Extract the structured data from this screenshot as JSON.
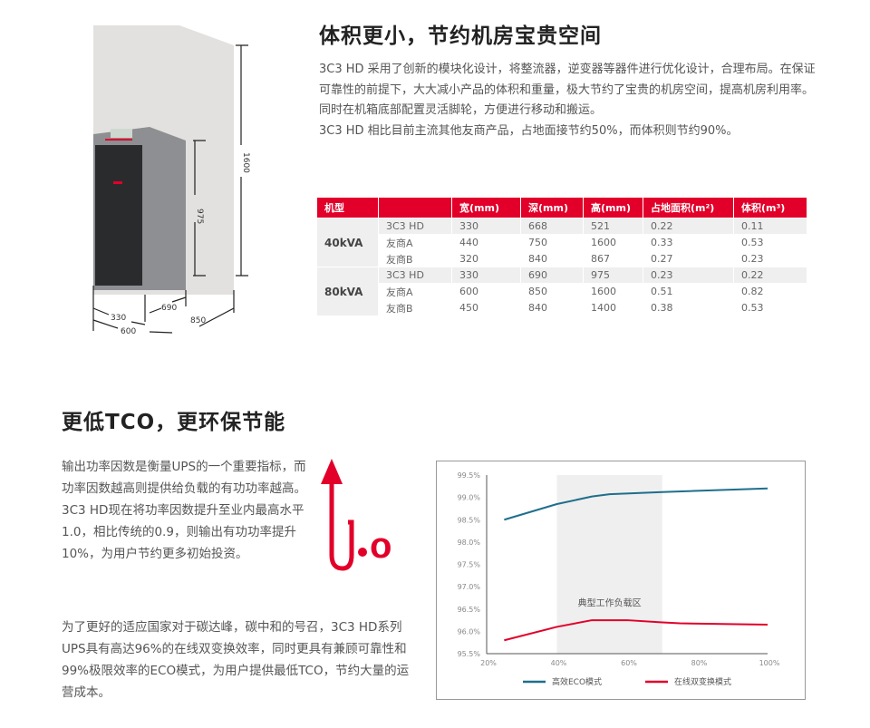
{
  "section1": {
    "title": "体积更小，节约机房宝贵空间",
    "paragraphs": [
      "3C3 HD 采用了创新的模块化设计，将整流器，逆变器等器件进行优化设计，合理布局。在保证可靠性的前提下，大大减小产品的体积和重量，极大节约了宝贵的机房空间，提高机房利用率。同时在机箱底部配置灵活脚轮，方便进行移动和搬运。",
      "3C3 HD 相比目前主流其他友商产品，占地面接节约50%，而体积则节约90%。"
    ],
    "dimensions": {
      "h_big": "1600",
      "h_small": "975",
      "w_small": "330",
      "d_small": "690",
      "w_big": "600",
      "d_big": "850"
    },
    "table": {
      "headers": [
        "机型",
        "",
        "宽(mm)",
        "深(mm)",
        "高(mm)",
        "占地面积(m²)",
        "体积(m³)"
      ],
      "groups": [
        {
          "model": "40kVA",
          "rows": [
            [
              "3C3 HD",
              "330",
              "668",
              "521",
              "0.22",
              "0.11"
            ],
            [
              "友商A",
              "440",
              "750",
              "1600",
              "0.33",
              "0.53"
            ],
            [
              "友商B",
              "320",
              "840",
              "867",
              "0.27",
              "0.23"
            ]
          ]
        },
        {
          "model": "80kVA",
          "rows": [
            [
              "3C3 HD",
              "330",
              "690",
              "975",
              "0.23",
              "0.22"
            ],
            [
              "友商A",
              "600",
              "850",
              "1600",
              "0.51",
              "0.82"
            ],
            [
              "友商B",
              "450",
              "840",
              "1400",
              "0.38",
              "0.53"
            ]
          ]
        }
      ]
    }
  },
  "section2": {
    "title": "更低TCO，更环保节能",
    "paragraph1": "输出功率因数是衡量UPS的一个重要指标，而功率因数越高则提供给负载的有功功率越高。3C3 HD现在将功率因数提升至业内最高水平1.0，相比传统的0.9，则输出有功功率提升10%，为用户节约更多初始投资。",
    "paragraph2": "为了更好的适应国家对于碳达峰，碳中和的号召，3C3 HD系列UPS具有高达96%的在线双变换效率，同时更具有兼顾可靠性和99%极限效率的ECO模式，为用户提供最低TCO，节约大量的运营成本。",
    "graphic_text": "1.0"
  },
  "colors": {
    "accent": "#e2002a",
    "eco": "#1f6e8c",
    "online": "#e2002a"
  },
  "chart_data": {
    "type": "line",
    "title": "",
    "xlabel": "",
    "ylabel": "",
    "xlim": [
      20,
      100
    ],
    "ylim": [
      95.5,
      99.5
    ],
    "x_ticks": [
      "20%",
      "40%",
      "60%",
      "80%",
      "100%"
    ],
    "y_ticks": [
      "95.5%",
      "96.0%",
      "96.5%",
      "97.0%",
      "97.5%",
      "98.0%",
      "98.5%",
      "99.0%",
      "99.5%"
    ],
    "shaded_region": {
      "x": [
        40,
        70
      ],
      "label": "典型工作负载区"
    },
    "series": [
      {
        "name": "高效ECO模式",
        "color": "#1f6e8c",
        "x": [
          25,
          40,
          50,
          55,
          70,
          100
        ],
        "y": [
          98.5,
          98.85,
          99.02,
          99.07,
          99.12,
          99.2
        ]
      },
      {
        "name": "在线双变换模式",
        "color": "#e2002a",
        "x": [
          25,
          40,
          50,
          60,
          70,
          75,
          100
        ],
        "y": [
          95.8,
          96.1,
          96.25,
          96.25,
          96.2,
          96.18,
          96.15
        ]
      }
    ],
    "legend": "bottom",
    "grid": false
  }
}
